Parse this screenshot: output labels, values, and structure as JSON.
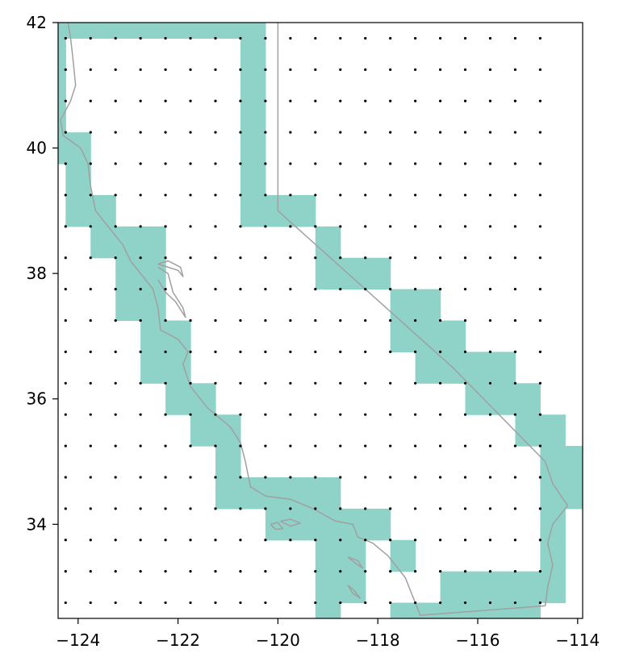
{
  "chart_data": {
    "type": "scatter",
    "title": "",
    "xlabel": "",
    "ylabel": "",
    "xlim": [
      -124.4,
      -113.9
    ],
    "ylim": [
      32.5,
      42.0
    ],
    "grid": false,
    "x_ticks": [
      -124,
      -122,
      -120,
      -118,
      -116,
      -114
    ],
    "y_ticks": [
      34,
      36,
      38,
      40,
      42
    ],
    "x_tick_labels": [
      "−124",
      "−122",
      "−120",
      "−118",
      "−116",
      "−114"
    ],
    "y_tick_labels": [
      "34",
      "36",
      "38",
      "40",
      "42"
    ],
    "colors": {
      "cells": "#8fd3c8",
      "outline": "#a0a0a0",
      "points": "#000000",
      "frame": "#000000"
    },
    "grid_points": {
      "x_start": -124.25,
      "x_step": 0.5,
      "x_count": 20,
      "y_start": 32.75,
      "y_step": 0.5,
      "y_count": 19
    },
    "highlighted_cells": {
      "cell_size_deg": 0.5,
      "rows": [
        {
          "lat": 42.0,
          "lons": [
            -124.5,
            -124.0,
            -123.5,
            -123.0,
            -122.5,
            -122.0,
            -121.5,
            -121.0,
            -120.5
          ]
        },
        {
          "lat": 41.5,
          "lons": [
            -124.5,
            -120.5
          ]
        },
        {
          "lat": 41.0,
          "lons": [
            -124.5,
            -120.5
          ]
        },
        {
          "lat": 40.5,
          "lons": [
            -124.5,
            -120.5
          ]
        },
        {
          "lat": 40.0,
          "lons": [
            -124.5,
            -124.0,
            -120.5
          ]
        },
        {
          "lat": 39.5,
          "lons": [
            -124.0,
            -120.5
          ]
        },
        {
          "lat": 39.0,
          "lons": [
            -124.0,
            -123.5,
            -120.5,
            -120.0,
            -119.5
          ]
        },
        {
          "lat": 38.5,
          "lons": [
            -123.5,
            -123.0,
            -122.5,
            -119.0
          ]
        },
        {
          "lat": 38.0,
          "lons": [
            -123.0,
            -122.5,
            -119.0,
            -118.5,
            -118.0
          ]
        },
        {
          "lat": 37.5,
          "lons": [
            -123.0,
            -122.5,
            -117.5,
            -117.0
          ]
        },
        {
          "lat": 37.0,
          "lons": [
            -122.5,
            -122.0,
            -117.5,
            -117.0,
            -116.5
          ]
        },
        {
          "lat": 36.5,
          "lons": [
            -122.5,
            -122.0,
            -117.0,
            -116.5,
            -116.0,
            -115.5
          ]
        },
        {
          "lat": 36.0,
          "lons": [
            -122.0,
            -121.5,
            -116.0,
            -115.5,
            -115.0
          ]
        },
        {
          "lat": 35.5,
          "lons": [
            -121.5,
            -121.0,
            -115.0,
            -114.5
          ]
        },
        {
          "lat": 35.0,
          "lons": [
            -121.0,
            -114.5,
            -114.0
          ]
        },
        {
          "lat": 34.5,
          "lons": [
            -121.0,
            -120.5,
            -120.0,
            -119.5,
            -119.0,
            -114.5,
            -114.0
          ]
        },
        {
          "lat": 34.0,
          "lons": [
            -120.0,
            -119.5,
            -119.0,
            -118.5,
            -118.0,
            -114.5
          ]
        },
        {
          "lat": 33.5,
          "lons": [
            -119.0,
            -118.5,
            -117.5,
            -114.5
          ]
        },
        {
          "lat": 33.0,
          "lons": [
            -119.0,
            -118.5,
            -116.5,
            -116.0,
            -115.5,
            -115.0,
            -114.5
          ]
        },
        {
          "lat": 32.5,
          "lons": [
            -119.0,
            -117.5,
            -117.0,
            -116.5,
            -116.0,
            -115.5,
            -115.0
          ]
        }
      ]
    },
    "outline_lines": [
      {
        "name": "california-boundary",
        "points": [
          [
            -124.2,
            42.0
          ],
          [
            -124.15,
            41.75
          ],
          [
            -124.1,
            41.4
          ],
          [
            -124.05,
            41.0
          ],
          [
            -124.15,
            40.75
          ],
          [
            -124.35,
            40.45
          ],
          [
            -124.3,
            40.2
          ],
          [
            -123.95,
            40.0
          ],
          [
            -123.8,
            39.75
          ],
          [
            -123.75,
            39.4
          ],
          [
            -123.65,
            39.0
          ],
          [
            -123.35,
            38.7
          ],
          [
            -123.1,
            38.45
          ],
          [
            -122.95,
            38.2
          ],
          [
            -122.7,
            37.95
          ],
          [
            -122.5,
            37.75
          ],
          [
            -122.4,
            37.45
          ],
          [
            -122.35,
            37.1
          ],
          [
            -122.0,
            36.95
          ],
          [
            -121.8,
            36.75
          ],
          [
            -121.9,
            36.55
          ],
          [
            -121.75,
            36.2
          ],
          [
            -121.4,
            35.85
          ],
          [
            -120.95,
            35.55
          ],
          [
            -120.75,
            35.3
          ],
          [
            -120.65,
            35.0
          ],
          [
            -120.55,
            34.6
          ],
          [
            -120.25,
            34.45
          ],
          [
            -119.75,
            34.4
          ],
          [
            -119.3,
            34.25
          ],
          [
            -118.85,
            34.05
          ],
          [
            -118.5,
            34.0
          ],
          [
            -118.4,
            33.8
          ],
          [
            -118.1,
            33.7
          ],
          [
            -117.8,
            33.5
          ],
          [
            -117.45,
            33.15
          ],
          [
            -117.3,
            32.85
          ],
          [
            -117.15,
            32.55
          ],
          [
            -114.65,
            32.7
          ],
          [
            -114.6,
            33.0
          ],
          [
            -114.5,
            33.35
          ],
          [
            -114.6,
            33.7
          ],
          [
            -114.5,
            34.0
          ],
          [
            -114.2,
            34.3
          ],
          [
            -114.5,
            34.65
          ],
          [
            -114.65,
            35.0
          ],
          [
            -116.5,
            36.5
          ],
          [
            -117.9,
            37.5
          ],
          [
            -120.0,
            39.0
          ],
          [
            -120.0,
            42.0
          ]
        ]
      },
      {
        "name": "sf-bay",
        "points": [
          [
            -122.4,
            38.1
          ],
          [
            -122.2,
            38.0
          ],
          [
            -122.1,
            37.7
          ],
          [
            -121.9,
            37.45
          ],
          [
            -121.85,
            37.3
          ],
          [
            -122.05,
            37.55
          ],
          [
            -122.25,
            37.7
          ],
          [
            -122.4,
            37.9
          ]
        ]
      },
      {
        "name": "delta",
        "points": [
          [
            -122.4,
            38.15
          ],
          [
            -122.2,
            38.1
          ],
          [
            -122.0,
            38.05
          ],
          [
            -121.9,
            37.95
          ],
          [
            -121.95,
            38.1
          ],
          [
            -122.2,
            38.2
          ],
          [
            -122.4,
            38.15
          ]
        ]
      },
      {
        "name": "santa-cruz-island",
        "points": [
          [
            -119.95,
            34.05
          ],
          [
            -119.75,
            34.08
          ],
          [
            -119.55,
            34.02
          ],
          [
            -119.75,
            33.97
          ],
          [
            -119.95,
            34.05
          ]
        ]
      },
      {
        "name": "santa-rosa-island",
        "points": [
          [
            -120.15,
            34.0
          ],
          [
            -120.0,
            34.03
          ],
          [
            -119.9,
            33.93
          ],
          [
            -120.05,
            33.92
          ],
          [
            -120.15,
            34.0
          ]
        ]
      },
      {
        "name": "santa-catalina-island",
        "points": [
          [
            -118.6,
            33.48
          ],
          [
            -118.4,
            33.42
          ],
          [
            -118.3,
            33.3
          ],
          [
            -118.45,
            33.38
          ],
          [
            -118.6,
            33.48
          ]
        ]
      },
      {
        "name": "san-clemente-island",
        "points": [
          [
            -118.6,
            33.03
          ],
          [
            -118.48,
            32.95
          ],
          [
            -118.35,
            32.82
          ],
          [
            -118.5,
            32.9
          ],
          [
            -118.6,
            33.03
          ]
        ]
      }
    ]
  }
}
